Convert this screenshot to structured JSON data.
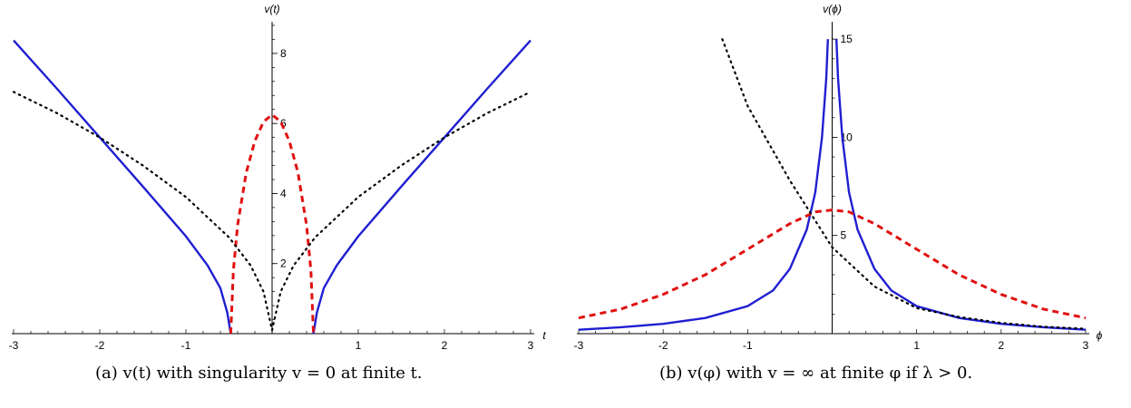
{
  "chart_data": [
    {
      "type": "line",
      "xlabel": "t",
      "ylabel": "v(t)",
      "xlim": [
        -3,
        3
      ],
      "ylim": [
        0,
        8.8
      ],
      "xticks": [
        {
          "v": -3,
          "label": "-3"
        },
        {
          "v": -2,
          "label": "-2"
        },
        {
          "v": -1,
          "label": "-1"
        },
        {
          "v": 1,
          "label": "1"
        },
        {
          "v": 2,
          "label": "2"
        },
        {
          "v": 3,
          "label": "3"
        }
      ],
      "yticks": [
        {
          "v": 2,
          "label": "2"
        },
        {
          "v": 4,
          "label": "4"
        },
        {
          "v": 6,
          "label": "6"
        },
        {
          "v": 8,
          "label": "8"
        }
      ],
      "grid": false,
      "series": [
        {
          "style": "solid",
          "color": "#1f1fd1",
          "segments": [
            [
              [
                -3,
                8.37
              ],
              [
                -2.5,
                7.0
              ],
              [
                -2,
                5.6
              ],
              [
                -1.5,
                4.2
              ],
              [
                -1,
                2.78
              ],
              [
                -0.75,
                1.95
              ],
              [
                -0.6,
                1.3
              ],
              [
                -0.52,
                0.6
              ],
              [
                -0.48,
                0.0
              ]
            ],
            [
              [
                0.48,
                0.0
              ],
              [
                0.52,
                0.6
              ],
              [
                0.6,
                1.3
              ],
              [
                0.75,
                1.95
              ],
              [
                1,
                2.78
              ],
              [
                1.5,
                4.2
              ],
              [
                2,
                5.6
              ],
              [
                2.5,
                7.0
              ],
              [
                3,
                8.37
              ]
            ]
          ]
        },
        {
          "style": "dashed",
          "color": "#e01010",
          "segments": [
            [
              [
                -0.48,
                0.0
              ],
              [
                -0.45,
                1.8
              ],
              [
                -0.4,
                3.1
              ],
              [
                -0.3,
                4.6
              ],
              [
                -0.2,
                5.5
              ],
              [
                -0.1,
                6.05
              ],
              [
                0,
                6.25
              ],
              [
                0.1,
                6.05
              ],
              [
                0.2,
                5.5
              ],
              [
                0.3,
                4.6
              ],
              [
                0.4,
                3.1
              ],
              [
                0.45,
                1.8
              ],
              [
                0.48,
                0.0
              ]
            ]
          ]
        },
        {
          "style": "dotted",
          "color": "#000000",
          "segments": [
            [
              [
                -3,
                6.9
              ],
              [
                -2.5,
                6.3
              ],
              [
                -2,
                5.6
              ],
              [
                -1.5,
                4.8
              ],
              [
                -1,
                3.9
              ],
              [
                -0.5,
                2.75
              ],
              [
                -0.25,
                1.95
              ],
              [
                -0.1,
                1.2
              ],
              [
                0,
                0.1
              ]
            ],
            [
              [
                0,
                0.1
              ],
              [
                0.1,
                1.2
              ],
              [
                0.25,
                1.95
              ],
              [
                0.5,
                2.75
              ],
              [
                1,
                3.9
              ],
              [
                1.5,
                4.8
              ],
              [
                2,
                5.6
              ],
              [
                2.5,
                6.3
              ],
              [
                3,
                6.9
              ]
            ]
          ]
        }
      ]
    },
    {
      "type": "line",
      "xlabel": "ϕ",
      "ylabel": "v(ϕ)",
      "xlim": [
        -3,
        3
      ],
      "ylim": [
        0,
        15.7
      ],
      "xticks": [
        {
          "v": -3,
          "label": "-3"
        },
        {
          "v": -2,
          "label": "-2"
        },
        {
          "v": -1,
          "label": "-1"
        },
        {
          "v": 1,
          "label": "1"
        },
        {
          "v": 2,
          "label": "2"
        },
        {
          "v": 3,
          "label": "3"
        }
      ],
      "yticks": [
        {
          "v": 5,
          "label": "5"
        },
        {
          "v": 10,
          "label": "10"
        },
        {
          "v": 15,
          "label": "15"
        }
      ],
      "grid": false,
      "series": [
        {
          "style": "solid",
          "color": "#1f1fd1",
          "segments": [
            [
              [
                -3,
                0.2
              ],
              [
                -2.5,
                0.33
              ],
              [
                -2,
                0.5
              ],
              [
                -1.5,
                0.8
              ],
              [
                -1,
                1.4
              ],
              [
                -0.7,
                2.2
              ],
              [
                -0.5,
                3.3
              ],
              [
                -0.3,
                5.3
              ],
              [
                -0.2,
                7.2
              ],
              [
                -0.12,
                10.0
              ],
              [
                -0.07,
                13.0
              ],
              [
                -0.05,
                15.0
              ]
            ],
            [
              [
                0.05,
                15.0
              ],
              [
                0.07,
                13.0
              ],
              [
                0.12,
                10.0
              ],
              [
                0.2,
                7.2
              ],
              [
                0.3,
                5.3
              ],
              [
                0.5,
                3.3
              ],
              [
                0.7,
                2.2
              ],
              [
                1,
                1.4
              ],
              [
                1.5,
                0.8
              ],
              [
                2,
                0.5
              ],
              [
                2.5,
                0.33
              ],
              [
                3,
                0.2
              ]
            ]
          ]
        },
        {
          "style": "dashed",
          "color": "#e01010",
          "segments": [
            [
              [
                -3,
                0.8
              ],
              [
                -2.5,
                1.25
              ],
              [
                -2,
                2.0
              ],
              [
                -1.5,
                3.0
              ],
              [
                -1,
                4.3
              ],
              [
                -0.5,
                5.6
              ],
              [
                -0.2,
                6.2
              ],
              [
                0,
                6.3
              ],
              [
                0.2,
                6.2
              ],
              [
                0.5,
                5.6
              ],
              [
                1,
                4.3
              ],
              [
                1.5,
                3.0
              ],
              [
                2,
                2.0
              ],
              [
                2.5,
                1.25
              ],
              [
                3,
                0.8
              ]
            ]
          ]
        },
        {
          "style": "dotted",
          "color": "#000000",
          "segments": [
            [
              [
                -1.3,
                15.0
              ],
              [
                -1,
                11.6
              ],
              [
                -0.5,
                7.8
              ],
              [
                0,
                4.4
              ],
              [
                0.5,
                2.4
              ],
              [
                1,
                1.3
              ],
              [
                1.5,
                0.85
              ],
              [
                2,
                0.55
              ],
              [
                2.5,
                0.35
              ],
              [
                3,
                0.25
              ]
            ]
          ]
        }
      ]
    }
  ],
  "captions": {
    "a": "(a) v(t) with singularity v = 0 at finite t.",
    "b": "(b) v(φ) with v = ∞ at finite φ if λ > 0."
  }
}
